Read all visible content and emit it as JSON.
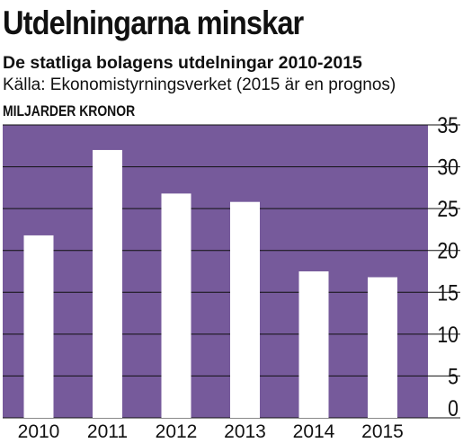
{
  "title": "Utdelningarna minskar",
  "subtitle": "De statliga bolagens utdelningar 2010-2015",
  "source": "Källa: Ekonomistyrningsverket (2015 är en prognos)",
  "unit_label": "MILJARDER KRONOR",
  "colors": {
    "plot_background": "#765a9b",
    "bar": "#ffffff",
    "gridline": "#111111",
    "text": "#111111"
  },
  "chart_data": {
    "type": "bar",
    "categories": [
      "2010",
      "2011",
      "2012",
      "2013",
      "2014",
      "2015"
    ],
    "values": [
      21.8,
      32.0,
      26.8,
      25.8,
      17.5,
      16.8
    ],
    "title": "Utdelningarna minskar",
    "subtitle": "De statliga bolagens utdelningar 2010-2015",
    "ylabel": "MILJARDER KRONOR",
    "ylim": [
      0,
      35
    ],
    "yticks": [
      "0",
      "5",
      "10",
      "15",
      "20",
      "25",
      "30",
      "35"
    ],
    "grid": true,
    "y_axis_side": "right"
  }
}
